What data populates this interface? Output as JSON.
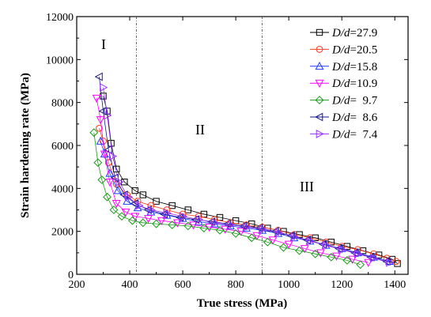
{
  "chart_data": {
    "type": "scatter",
    "title": "",
    "xlabel": "True stress (MPa)",
    "ylabel": "Strain hardening rate (MPa)",
    "xlim": [
      200,
      1450
    ],
    "ylim": [
      0,
      12000
    ],
    "xticks": [
      200,
      400,
      600,
      800,
      1000,
      1200,
      1400
    ],
    "yticks": [
      0,
      2000,
      4000,
      6000,
      8000,
      10000,
      12000
    ],
    "vlines": [
      425,
      900
    ],
    "regions": [
      "I",
      "II",
      "III"
    ],
    "legend_position": "top-right",
    "series": [
      {
        "label_prefix": "D/d",
        "label_value": "=27.9",
        "color": "#000000",
        "marker": "square",
        "x": [
          300,
          315,
          330,
          350,
          380,
          420,
          450,
          500,
          560,
          620,
          680,
          740,
          800,
          860,
          920,
          980,
          1040,
          1100,
          1160,
          1220,
          1280,
          1340,
          1390,
          1410
        ],
        "y": [
          8300,
          7600,
          6100,
          4900,
          4300,
          3900,
          3700,
          3400,
          3200,
          3000,
          2800,
          2650,
          2500,
          2350,
          2150,
          2000,
          1850,
          1700,
          1500,
          1300,
          1100,
          900,
          700,
          500
        ]
      },
      {
        "label_prefix": "D/d",
        "label_value": "=20.5",
        "color": "#ff3b1f",
        "marker": "circle",
        "x": [
          285,
          300,
          320,
          350,
          390,
          430,
          480,
          540,
          600,
          660,
          720,
          780,
          840,
          900,
          960,
          1020,
          1080,
          1140,
          1200,
          1260,
          1320,
          1370,
          1405
        ],
        "y": [
          6800,
          6200,
          5200,
          4200,
          3700,
          3400,
          3200,
          3000,
          2800,
          2700,
          2550,
          2400,
          2300,
          2200,
          2050,
          1850,
          1700,
          1500,
          1300,
          1150,
          950,
          750,
          600
        ]
      },
      {
        "label_prefix": "D/d",
        "label_value": "=15.8",
        "color": "#1f3bff",
        "marker": "triangle-up",
        "x": [
          290,
          305,
          325,
          355,
          390,
          430,
          480,
          540,
          600,
          660,
          720,
          780,
          840,
          900,
          960,
          1020,
          1080,
          1140,
          1200,
          1260,
          1320,
          1380
        ],
        "y": [
          6200,
          5600,
          4700,
          3900,
          3400,
          3100,
          2900,
          2750,
          2600,
          2450,
          2350,
          2250,
          2150,
          2050,
          1900,
          1700,
          1550,
          1350,
          1200,
          1000,
          800,
          600
        ]
      },
      {
        "label_prefix": "D/d",
        "label_value": "=10.9",
        "color": "#ff00ff",
        "marker": "triangle-down",
        "x": [
          275,
          290,
          305,
          325,
          350,
          385,
          420,
          470,
          520,
          580,
          640,
          700,
          760,
          820,
          880,
          940,
          1000,
          1060,
          1120,
          1180,
          1240,
          1300
        ],
        "y": [
          8200,
          7200,
          5600,
          4300,
          3300,
          2900,
          2700,
          2600,
          2500,
          2400,
          2300,
          2200,
          2100,
          2000,
          1800,
          1600,
          1400,
          1200,
          1000,
          850,
          700,
          550
        ]
      },
      {
        "label_prefix": "D/d",
        "label_value": "=  9.7",
        "color": "#1a9a1a",
        "marker": "diamond",
        "x": [
          265,
          280,
          295,
          315,
          340,
          370,
          410,
          450,
          500,
          560,
          620,
          680,
          740,
          800,
          860,
          920,
          980,
          1040,
          1100,
          1160,
          1220,
          1270
        ],
        "y": [
          6600,
          5200,
          4400,
          3600,
          3000,
          2700,
          2500,
          2400,
          2350,
          2300,
          2250,
          2150,
          2050,
          1900,
          1700,
          1500,
          1250,
          1100,
          950,
          800,
          650,
          450
        ]
      },
      {
        "label_prefix": "D/d",
        "label_value": "=  8.6",
        "color": "#1a1a8a",
        "marker": "triangle-left",
        "x": [
          285,
          300,
          320,
          345,
          380,
          420,
          470,
          530,
          590,
          650,
          710,
          770,
          830,
          890,
          950,
          1010,
          1070,
          1130,
          1190,
          1250,
          1310,
          1370
        ],
        "y": [
          9200,
          7600,
          5800,
          4500,
          3700,
          3300,
          3000,
          2800,
          2650,
          2550,
          2450,
          2350,
          2250,
          2150,
          2000,
          1800,
          1600,
          1400,
          1200,
          1000,
          800,
          600
        ]
      },
      {
        "label_prefix": "D/d",
        "label_value": "=  7.4",
        "color": "#9a30ff",
        "marker": "triangle-right",
        "x": [
          300,
          315,
          335,
          360,
          395,
          435,
          480,
          540,
          600,
          660,
          720,
          780,
          840,
          900,
          960,
          1020,
          1080,
          1140,
          1200,
          1260,
          1320,
          1380
        ],
        "y": [
          8700,
          7400,
          5500,
          4300,
          3600,
          3200,
          3000,
          2850,
          2700,
          2550,
          2400,
          2300,
          2200,
          2100,
          1950,
          1750,
          1550,
          1350,
          1150,
          950,
          750,
          550
        ]
      }
    ]
  }
}
